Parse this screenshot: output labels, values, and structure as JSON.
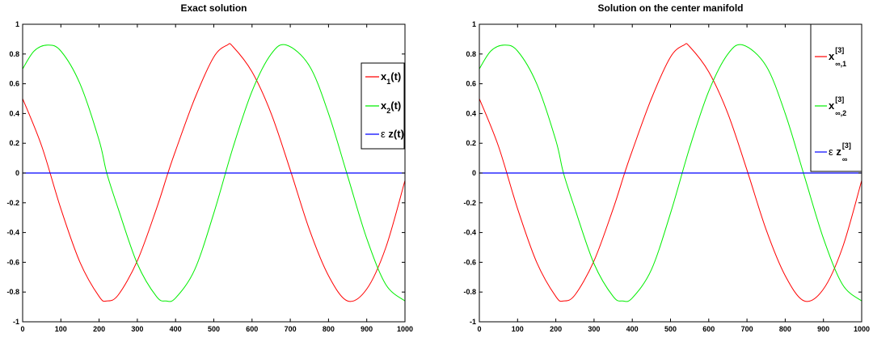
{
  "chart_data": [
    {
      "type": "line",
      "title": "Exact solution",
      "xlim": [
        0,
        1000
      ],
      "ylim": [
        -1,
        1
      ],
      "xticks": [
        0,
        100,
        200,
        300,
        400,
        500,
        600,
        700,
        800,
        900,
        1000
      ],
      "yticks": [
        -1,
        -0.8,
        -0.6,
        -0.4,
        -0.2,
        0,
        0.2,
        0.4,
        0.6,
        0.8,
        1
      ],
      "ytick_labels": [
        "-1",
        "-0.8",
        "-0.6",
        "-0.4",
        "-0.2",
        "0",
        "0.2",
        "0.4",
        "0.6",
        "0.8",
        "1"
      ],
      "grid": false,
      "legend_position": "right",
      "series": [
        {
          "legend": {
            "prefix": "",
            "main": "x",
            "sub": "1",
            "sup": "",
            "suffix": "(t)"
          },
          "color": "#ff0000",
          "x": [
            0,
            50,
            100,
            150,
            200,
            220,
            250,
            300,
            350,
            380,
            400,
            450,
            500,
            535,
            550,
            600,
            650,
            700,
            750,
            800,
            850,
            900,
            950,
            1000
          ],
          "y": [
            0.5,
            0.18,
            -0.24,
            -0.6,
            -0.83,
            -0.86,
            -0.82,
            -0.59,
            -0.24,
            0.0,
            0.15,
            0.5,
            0.78,
            0.86,
            0.85,
            0.68,
            0.4,
            0.02,
            -0.38,
            -0.69,
            -0.86,
            -0.78,
            -0.5,
            -0.05
          ]
        },
        {
          "legend": {
            "prefix": "",
            "main": "x",
            "sub": "2",
            "sup": "",
            "suffix": "(t)"
          },
          "color": "#00ee00",
          "x": [
            0,
            30,
            65,
            100,
            150,
            200,
            220,
            250,
            300,
            350,
            375,
            400,
            450,
            500,
            550,
            600,
            650,
            690,
            750,
            800,
            850,
            900,
            950,
            1000
          ],
          "y": [
            0.7,
            0.82,
            0.86,
            0.82,
            0.6,
            0.22,
            0.0,
            -0.24,
            -0.61,
            -0.83,
            -0.86,
            -0.84,
            -0.65,
            -0.27,
            0.17,
            0.55,
            0.8,
            0.86,
            0.72,
            0.4,
            -0.02,
            -0.44,
            -0.75,
            -0.86
          ]
        },
        {
          "legend": {
            "prefix": "ε ",
            "main": "z",
            "sub": "",
            "sup": "",
            "suffix": "(t)"
          },
          "color": "#0000ff",
          "x": [
            0,
            1000
          ],
          "y": [
            0,
            0
          ]
        }
      ]
    },
    {
      "type": "line",
      "title": "Solution on the center manifold",
      "xlim": [
        0,
        1000
      ],
      "ylim": [
        -1,
        1
      ],
      "xticks": [
        0,
        100,
        200,
        300,
        400,
        500,
        600,
        700,
        800,
        900,
        1000
      ],
      "yticks": [
        -1,
        -0.8,
        -0.6,
        -0.4,
        -0.2,
        0,
        0.2,
        0.4,
        0.6,
        0.8,
        1
      ],
      "ytick_labels": [
        "-1",
        "-0.8",
        "-0.6",
        "-0.4",
        "-0.2",
        "0",
        "0.2",
        "0.4",
        "0.6",
        "0.8",
        "1"
      ],
      "grid": false,
      "legend_position": "top-right",
      "series": [
        {
          "legend": {
            "prefix": "",
            "main": "x",
            "sub": "∞,1",
            "sup": "[3]",
            "suffix": ""
          },
          "color": "#ff0000",
          "x": [
            0,
            50,
            100,
            150,
            200,
            220,
            250,
            300,
            350,
            380,
            400,
            450,
            500,
            535,
            550,
            600,
            650,
            700,
            750,
            800,
            850,
            900,
            950,
            1000
          ],
          "y": [
            0.5,
            0.18,
            -0.24,
            -0.6,
            -0.83,
            -0.86,
            -0.82,
            -0.59,
            -0.24,
            0.0,
            0.15,
            0.5,
            0.78,
            0.86,
            0.85,
            0.68,
            0.4,
            0.02,
            -0.38,
            -0.69,
            -0.86,
            -0.78,
            -0.5,
            -0.05
          ]
        },
        {
          "legend": {
            "prefix": "",
            "main": "x",
            "sub": "∞,2",
            "sup": "[3]",
            "suffix": ""
          },
          "color": "#00ee00",
          "x": [
            0,
            30,
            65,
            100,
            150,
            200,
            220,
            250,
            300,
            350,
            375,
            400,
            450,
            500,
            550,
            600,
            650,
            690,
            750,
            800,
            850,
            900,
            950,
            1000
          ],
          "y": [
            0.7,
            0.82,
            0.86,
            0.82,
            0.6,
            0.22,
            0.0,
            -0.24,
            -0.61,
            -0.83,
            -0.86,
            -0.84,
            -0.65,
            -0.27,
            0.17,
            0.55,
            0.8,
            0.86,
            0.72,
            0.4,
            -0.02,
            -0.44,
            -0.75,
            -0.86
          ]
        },
        {
          "legend": {
            "prefix": "ε ",
            "main": "z",
            "sub": "∞",
            "sup": "[3]",
            "suffix": ""
          },
          "color": "#0000ff",
          "x": [
            0,
            1000
          ],
          "y": [
            0,
            0
          ]
        }
      ]
    }
  ]
}
